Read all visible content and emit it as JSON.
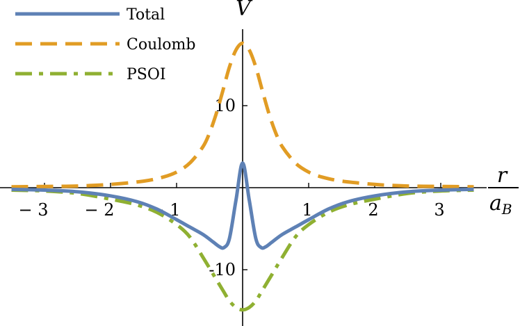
{
  "chart_data": {
    "type": "line",
    "xlim": [
      -3.55,
      3.55
    ],
    "ylim": [
      -15.5,
      18.5
    ],
    "x_ticks": [
      {
        "value": -3,
        "label": "− 3"
      },
      {
        "value": -2,
        "label": "− 2"
      },
      {
        "value": -1,
        "label": "− 1"
      },
      {
        "value": 1,
        "label": "1"
      },
      {
        "value": 2,
        "label": "2"
      },
      {
        "value": 3,
        "label": "3"
      }
    ],
    "y_ticks": [
      {
        "value": 10,
        "label": "10"
      },
      {
        "value": -10,
        "label": "-10"
      }
    ],
    "ylabel": "V",
    "xlabel_numerator": "r",
    "xlabel_denominator": "a",
    "xlabel_denominator_sub": "B",
    "grid": false,
    "legend_position": "top-left",
    "series": [
      {
        "name": "Total",
        "color": "#5e81b5",
        "style": "solid",
        "x": [
          -3.5,
          -3.0,
          -2.5,
          -2.0,
          -1.6,
          -1.3,
          -1.0,
          -0.8,
          -0.6,
          -0.45,
          -0.35,
          -0.28,
          -0.2,
          -0.1,
          0.0,
          0.1,
          0.2,
          0.28,
          0.35,
          0.45,
          0.6,
          0.8,
          1.0,
          1.3,
          1.6,
          2.0,
          2.5,
          3.0,
          3.5
        ],
        "y": [
          -0.2,
          -0.3,
          -0.5,
          -1.0,
          -1.7,
          -2.6,
          -3.9,
          -4.8,
          -5.7,
          -6.6,
          -7.2,
          -7.3,
          -6.2,
          -1.5,
          3.0,
          -1.5,
          -6.2,
          -7.3,
          -7.2,
          -6.6,
          -5.7,
          -4.8,
          -3.9,
          -2.6,
          -1.7,
          -1.0,
          -0.5,
          -0.3,
          -0.2
        ]
      },
      {
        "name": "Coulomb",
        "color": "#e19c24",
        "style": "dashed",
        "x": [
          -3.5,
          -3.0,
          -2.5,
          -2.0,
          -1.5,
          -1.2,
          -1.0,
          -0.8,
          -0.6,
          -0.5,
          -0.4,
          -0.3,
          -0.2,
          -0.1,
          0.0,
          0.1,
          0.2,
          0.3,
          0.4,
          0.5,
          0.6,
          0.8,
          1.0,
          1.2,
          1.5,
          2.0,
          2.5,
          3.0,
          3.5
        ],
        "y": [
          0.1,
          0.15,
          0.2,
          0.4,
          0.8,
          1.3,
          1.9,
          3.0,
          5.0,
          6.7,
          9.0,
          11.8,
          14.7,
          16.8,
          17.6,
          16.8,
          14.7,
          11.8,
          9.0,
          6.7,
          5.0,
          3.0,
          1.9,
          1.3,
          0.8,
          0.4,
          0.2,
          0.15,
          0.1
        ]
      },
      {
        "name": "PSOI",
        "color": "#8fb032",
        "style": "dashdot",
        "x": [
          -3.5,
          -3.0,
          -2.5,
          -2.0,
          -1.6,
          -1.3,
          -1.0,
          -0.8,
          -0.6,
          -0.45,
          -0.3,
          -0.2,
          -0.1,
          0.0,
          0.1,
          0.2,
          0.3,
          0.45,
          0.6,
          0.8,
          1.0,
          1.3,
          1.6,
          2.0,
          2.5,
          3.0,
          3.5
        ],
        "y": [
          -0.3,
          -0.4,
          -0.7,
          -1.4,
          -2.1,
          -3.0,
          -4.5,
          -6.0,
          -8.5,
          -10.5,
          -12.5,
          -13.8,
          -14.6,
          -14.9,
          -14.6,
          -13.8,
          -12.5,
          -10.5,
          -8.5,
          -6.0,
          -4.5,
          -3.0,
          -2.1,
          -1.4,
          -0.7,
          -0.4,
          -0.3
        ]
      }
    ]
  }
}
